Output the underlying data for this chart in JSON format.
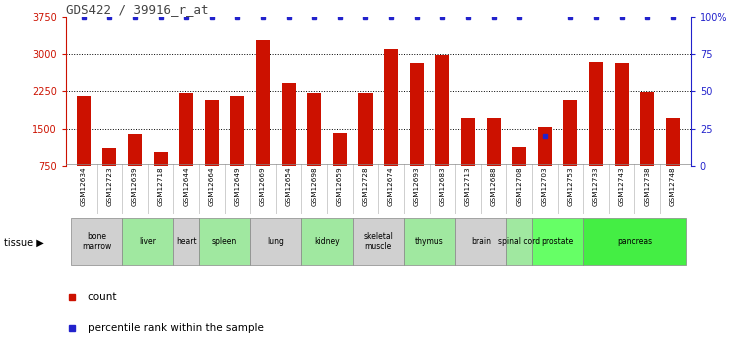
{
  "title": "GDS422 / 39916_r_at",
  "samples": [
    "GSM12634",
    "GSM12723",
    "GSM12639",
    "GSM12718",
    "GSM12644",
    "GSM12664",
    "GSM12649",
    "GSM12669",
    "GSM12654",
    "GSM12698",
    "GSM12659",
    "GSM12728",
    "GSM12674",
    "GSM12693",
    "GSM12683",
    "GSM12713",
    "GSM12688",
    "GSM12708",
    "GSM12703",
    "GSM12753",
    "GSM12733",
    "GSM12743",
    "GSM12738",
    "GSM12748"
  ],
  "counts": [
    2150,
    1100,
    1380,
    1020,
    2220,
    2080,
    2150,
    3280,
    2430,
    2220,
    1400,
    2220,
    3100,
    2820,
    2980,
    1720,
    1720,
    1130,
    1540,
    2070,
    2840,
    2820,
    2230,
    1720
  ],
  "percentiles": [
    100,
    100,
    100,
    100,
    100,
    100,
    100,
    100,
    100,
    100,
    100,
    100,
    100,
    100,
    100,
    100,
    100,
    100,
    20,
    100,
    100,
    100,
    100,
    100
  ],
  "tissues": [
    {
      "name": "bone\nmarrow",
      "start": 0,
      "end": 2,
      "color": "#d0d0d0"
    },
    {
      "name": "liver",
      "start": 2,
      "end": 4,
      "color": "#a0e8a0"
    },
    {
      "name": "heart",
      "start": 4,
      "end": 5,
      "color": "#d0d0d0"
    },
    {
      "name": "spleen",
      "start": 5,
      "end": 7,
      "color": "#a0e8a0"
    },
    {
      "name": "lung",
      "start": 7,
      "end": 9,
      "color": "#d0d0d0"
    },
    {
      "name": "kidney",
      "start": 9,
      "end": 11,
      "color": "#a0e8a0"
    },
    {
      "name": "skeletal\nmuscle",
      "start": 11,
      "end": 13,
      "color": "#d0d0d0"
    },
    {
      "name": "thymus",
      "start": 13,
      "end": 15,
      "color": "#a0e8a0"
    },
    {
      "name": "brain",
      "start": 15,
      "end": 17,
      "color": "#d0d0d0"
    },
    {
      "name": "spinal cord",
      "start": 17,
      "end": 18,
      "color": "#a0e8a0"
    },
    {
      "name": "prostate",
      "start": 18,
      "end": 20,
      "color": "#66ff66"
    },
    {
      "name": "pancreas",
      "start": 20,
      "end": 24,
      "color": "#44ee44"
    }
  ],
  "bar_color": "#cc1100",
  "dot_color": "#2222cc",
  "ylim": [
    750,
    3750
  ],
  "yticks": [
    750,
    1500,
    2250,
    3000,
    3750
  ],
  "y2ticks": [
    0,
    25,
    50,
    75,
    100
  ],
  "y2lim": [
    0,
    100
  ],
  "bg_color": "#ffffff",
  "xticklabel_bg": "#d0d0d0",
  "title_color": "#444444",
  "axis_label_color_left": "#cc1100",
  "axis_label_color_right": "#2222cc"
}
